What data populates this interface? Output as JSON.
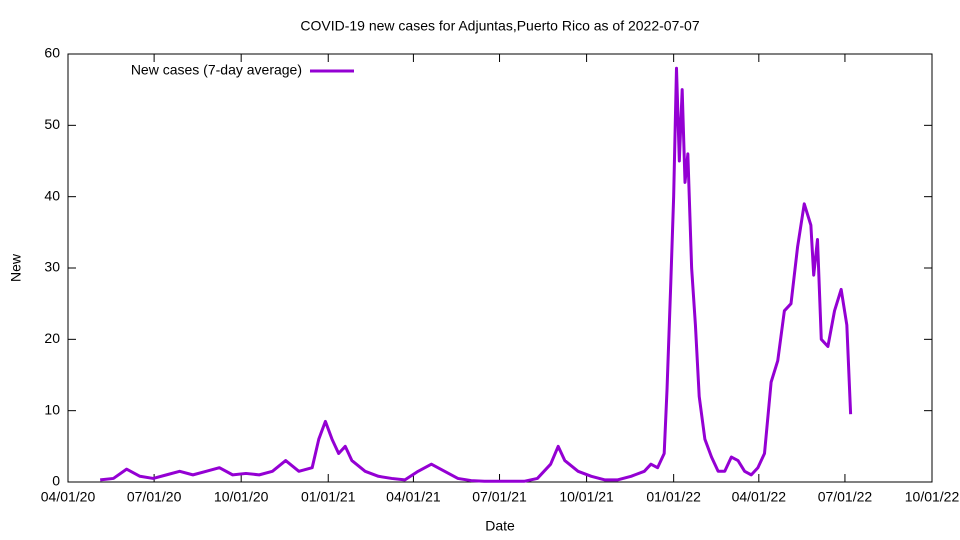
{
  "chart_data": {
    "type": "line",
    "title": "COVID-19 new cases for Adjuntas,Puerto Rico as of 2022-07-07",
    "x_label": "Date",
    "y_label": "New",
    "legend": "top-left",
    "x": [
      "2020-05-05",
      "2020-05-19",
      "2020-06-02",
      "2020-06-16",
      "2020-06-30",
      "2020-07-14",
      "2020-07-28",
      "2020-08-11",
      "2020-08-25",
      "2020-09-08",
      "2020-09-22",
      "2020-10-06",
      "2020-10-20",
      "2020-11-03",
      "2020-11-17",
      "2020-12-01",
      "2020-12-15",
      "2020-12-22",
      "2020-12-29",
      "2021-01-05",
      "2021-01-12",
      "2021-01-19",
      "2021-01-26",
      "2021-02-09",
      "2021-02-23",
      "2021-03-09",
      "2021-03-23",
      "2021-04-06",
      "2021-04-20",
      "2021-05-04",
      "2021-05-18",
      "2021-06-01",
      "2021-06-15",
      "2021-06-29",
      "2021-07-13",
      "2021-07-27",
      "2021-08-10",
      "2021-08-24",
      "2021-09-01",
      "2021-09-08",
      "2021-09-22",
      "2021-10-06",
      "2021-10-20",
      "2021-11-03",
      "2021-11-17",
      "2021-12-01",
      "2021-12-08",
      "2021-12-15",
      "2021-12-22",
      "2021-12-25",
      "2021-12-29",
      "2022-01-01",
      "2022-01-04",
      "2022-01-07",
      "2022-01-10",
      "2022-01-13",
      "2022-01-16",
      "2022-01-20",
      "2022-01-24",
      "2022-01-28",
      "2022-02-03",
      "2022-02-10",
      "2022-02-17",
      "2022-02-24",
      "2022-03-03",
      "2022-03-10",
      "2022-03-17",
      "2022-03-24",
      "2022-03-31",
      "2022-04-07",
      "2022-04-14",
      "2022-04-21",
      "2022-04-28",
      "2022-05-05",
      "2022-05-12",
      "2022-05-19",
      "2022-05-26",
      "2022-05-29",
      "2022-06-02",
      "2022-06-06",
      "2022-06-13",
      "2022-06-20",
      "2022-06-27",
      "2022-07-03",
      "2022-07-07"
    ],
    "series": [
      {
        "name": "New cases (7-day average)",
        "color": "#9400d3",
        "values": [
          0.3,
          0.5,
          1.8,
          0.8,
          0.5,
          1,
          1.5,
          1,
          1.5,
          2,
          1,
          1.2,
          1,
          1.5,
          3,
          1.5,
          2,
          6,
          8.5,
          6,
          4,
          5,
          3,
          1.5,
          0.8,
          0.5,
          0.3,
          1.5,
          2.5,
          1.5,
          0.5,
          0.2,
          0.1,
          0.1,
          0.1,
          0.1,
          0.5,
          2.5,
          5,
          3,
          1.5,
          0.8,
          0.3,
          0.3,
          0.8,
          1.5,
          2.5,
          2,
          4,
          13,
          28,
          40,
          58,
          45,
          55,
          42,
          46,
          30,
          22,
          12,
          6,
          3.5,
          1.5,
          1.5,
          3.5,
          3,
          1.5,
          1,
          2,
          4,
          14,
          17,
          24,
          25,
          33,
          39,
          36,
          29,
          34,
          20,
          19,
          24,
          27,
          22,
          9.5
        ]
      }
    ],
    "xlim": [
      "2020-04-01",
      "2022-10-01"
    ],
    "xticks": [
      {
        "value": "2020-04-01",
        "label": "04/01/20"
      },
      {
        "value": "2020-07-01",
        "label": "07/01/20"
      },
      {
        "value": "2020-10-01",
        "label": "10/01/20"
      },
      {
        "value": "2021-01-01",
        "label": "01/01/21"
      },
      {
        "value": "2021-04-01",
        "label": "04/01/21"
      },
      {
        "value": "2021-07-01",
        "label": "07/01/21"
      },
      {
        "value": "2021-10-01",
        "label": "10/01/21"
      },
      {
        "value": "2022-01-01",
        "label": "01/01/22"
      },
      {
        "value": "2022-04-01",
        "label": "04/01/22"
      },
      {
        "value": "2022-07-01",
        "label": "07/01/22"
      },
      {
        "value": "2022-10-01",
        "label": "10/01/22"
      }
    ],
    "ylim": [
      0,
      60
    ],
    "yticks": [
      0,
      10,
      20,
      30,
      40,
      50,
      60
    ]
  }
}
